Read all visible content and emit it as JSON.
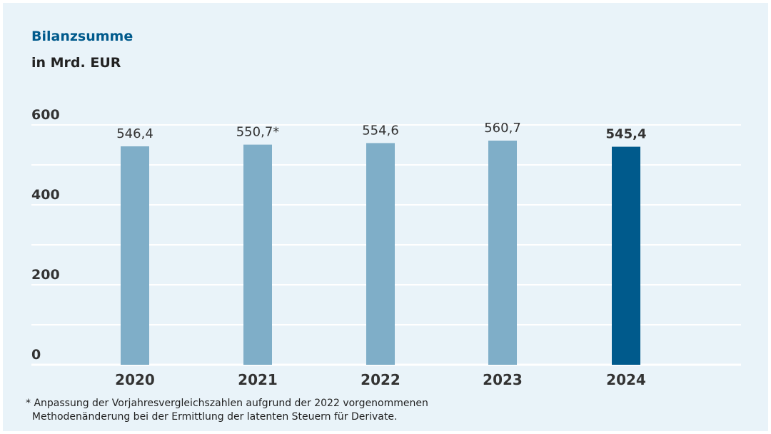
{
  "chart_data": {
    "type": "bar",
    "title": "Bilanzsumme",
    "subtitle": "in Mrd. EUR",
    "categories": [
      "2020",
      "2021",
      "2022",
      "2023",
      "2024"
    ],
    "values": [
      546.4,
      550.7,
      554.6,
      560.7,
      545.4
    ],
    "value_labels": [
      "546,4",
      "550,7*",
      "554,6",
      "560,7",
      "545,4"
    ],
    "ylim": [
      0,
      600
    ],
    "yticks": [
      "0",
      "200",
      "400",
      "600"
    ],
    "grid": true,
    "colors": {
      "bar": "#7faec8",
      "highlight": "#005a8c",
      "grid": "#ffffff"
    },
    "highlight_index": 4
  },
  "footnote": {
    "line1": "* Anpassung der Vorjahresvergleichszahlen aufgrund der 2022 vorgenommenen",
    "line2": "  Methodenänderung bei der Ermittlung der latenten Steuern für Derivate."
  }
}
